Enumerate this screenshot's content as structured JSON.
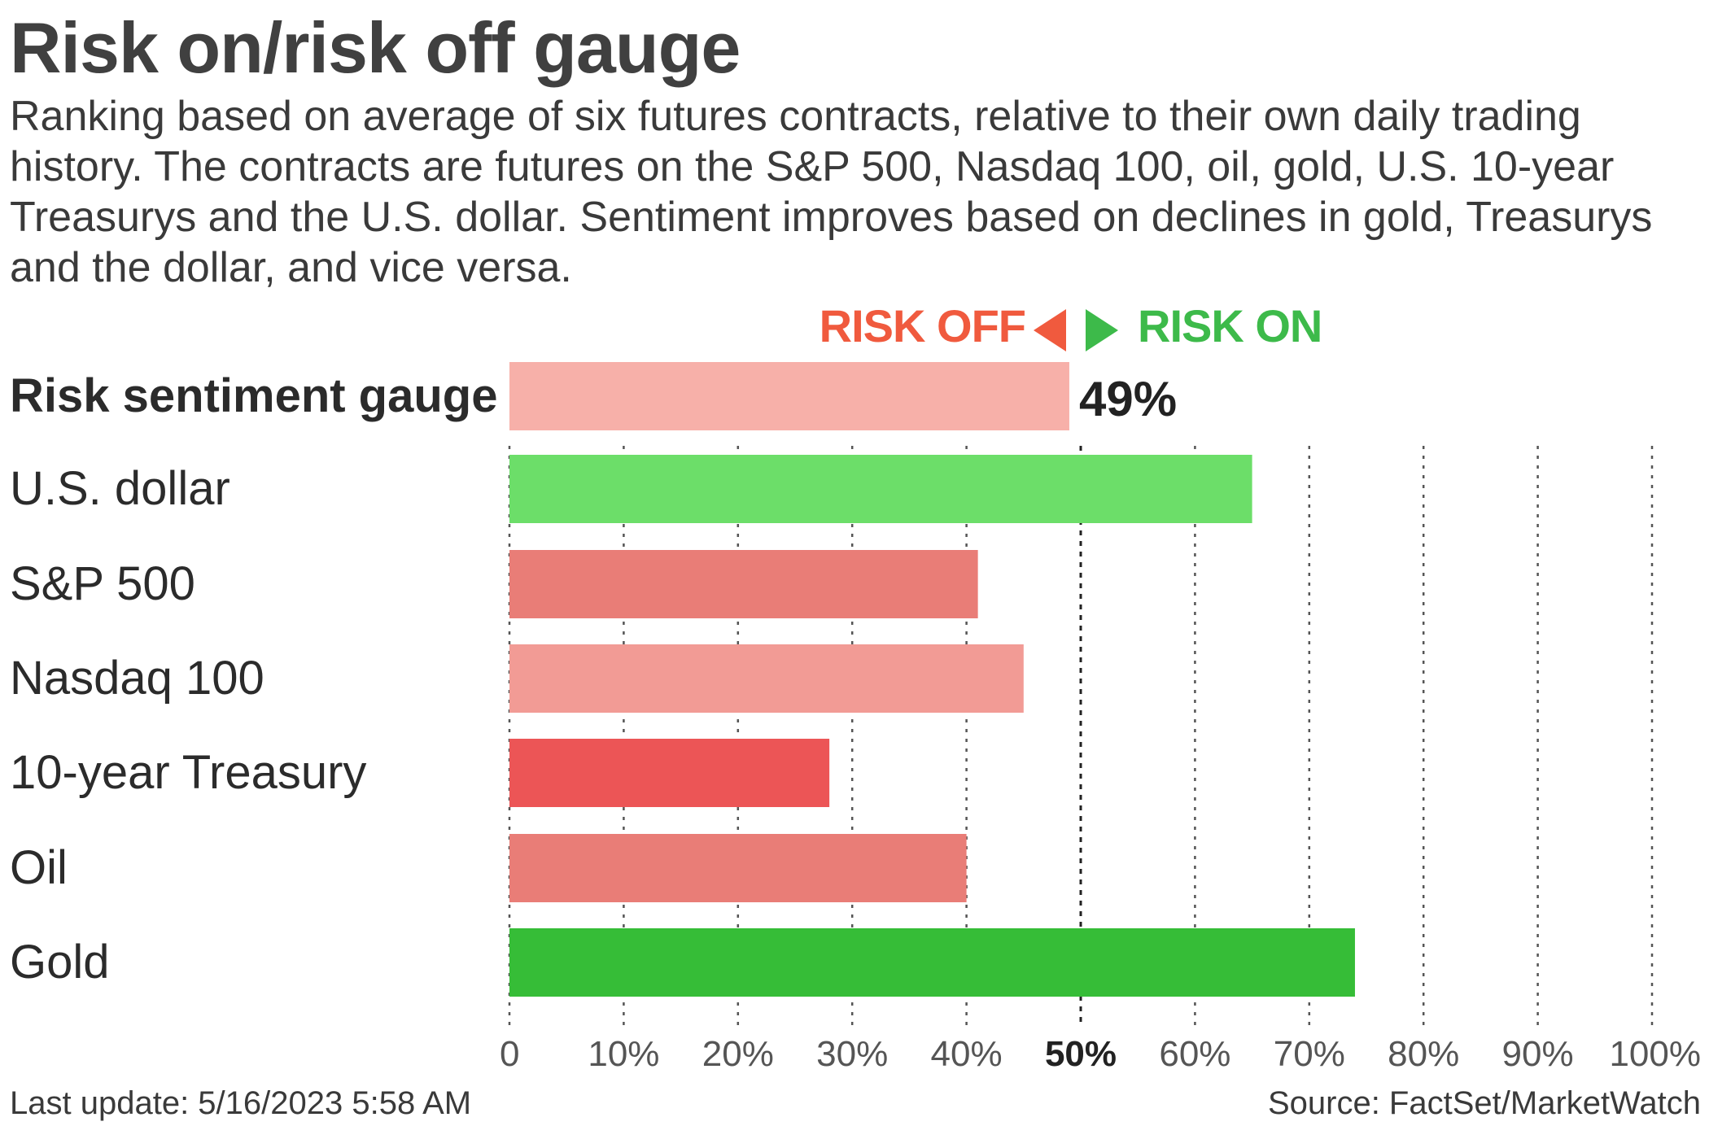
{
  "title": "Risk on/risk off gauge",
  "subtitle": "Ranking based on average of six futures contracts, relative to their own daily trading history. The contracts are futures on the S&P 500, Nasdaq 100, oil, gold, U.S. 10-year Treasurys and the U.S. dollar. Sentiment improves based on declines in gold, Treasurys and the dollar, and vice versa.",
  "legend": {
    "risk_off": "RISK OFF",
    "risk_on": "RISK ON",
    "risk_off_color": "#f05a3e",
    "risk_on_color": "#3dba4a"
  },
  "chart_data": {
    "type": "bar",
    "orientation": "horizontal",
    "categories": [
      "Risk sentiment gauge",
      "U.S. dollar",
      "S&P 500",
      "Nasdaq 100",
      "10-year Treasury",
      "Oil",
      "Gold"
    ],
    "values": [
      49,
      65,
      41,
      45,
      28,
      40,
      74
    ],
    "colors": [
      "#f7b0a9",
      "#6cde69",
      "#e97d77",
      "#f29b95",
      "#ec5556",
      "#e97d77",
      "#36bd37"
    ],
    "highlight_category": "Risk sentiment gauge",
    "highlight_label": "49%",
    "xlim": [
      0,
      100
    ],
    "x_ticks": [
      0,
      10,
      20,
      30,
      40,
      50,
      60,
      70,
      80,
      90,
      100
    ],
    "x_tick_labels": [
      "0",
      "10%",
      "20%",
      "30%",
      "40%",
      "50%",
      "60%",
      "70%",
      "80%",
      "90%",
      "100%"
    ],
    "grid": "vertical dotted",
    "xlabel": "",
    "ylabel": ""
  },
  "footer": {
    "last_update": "Last update: 5/16/2023 5:58 AM",
    "source": "Source: FactSet/MarketWatch"
  }
}
